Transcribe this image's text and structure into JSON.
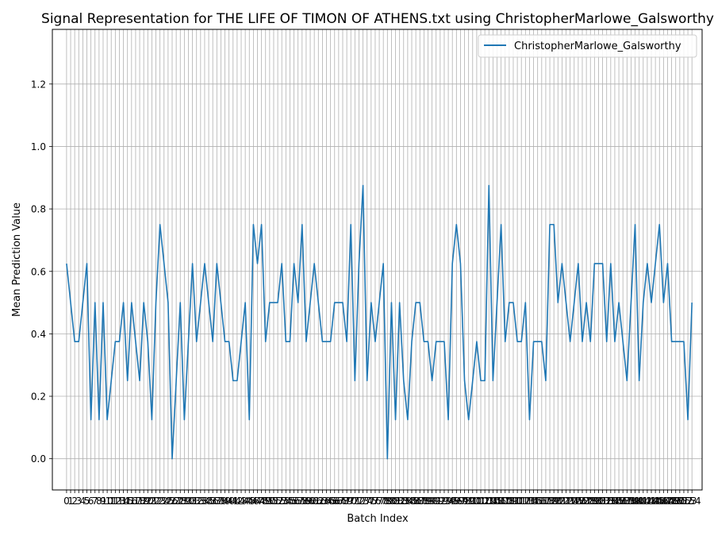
{
  "chart_data": {
    "type": "line",
    "title": "Signal Representation for THE LIFE OF TIMON OF ATHENS.txt using ChristopherMarlowe_Galsworthy",
    "xlabel": "Batch Index",
    "ylabel": "Mean Prediction Value",
    "xlim": [
      -3.5,
      156.5
    ],
    "ylim": [
      -0.1,
      1.375
    ],
    "yticks": [
      0.0,
      0.2,
      0.4,
      0.6,
      0.8,
      1.0,
      1.2
    ],
    "grid": true,
    "legend": "top-right",
    "series": [
      {
        "name": "ChristopherMarlowe_Galsworthy",
        "color": "#1f77b4",
        "values": [
          0.625,
          0.5,
          0.375,
          0.375,
          0.5,
          0.625,
          0.125,
          0.5,
          0.125,
          0.5,
          0.125,
          0.25,
          0.375,
          0.375,
          0.5,
          0.25,
          0.5,
          0.375,
          0.25,
          0.5,
          0.375,
          0.125,
          0.5,
          0.75,
          0.625,
          0.5,
          0.0,
          0.25,
          0.5,
          0.125,
          0.375,
          0.625,
          0.375,
          0.5,
          0.625,
          0.5,
          0.375,
          0.625,
          0.5,
          0.375,
          0.375,
          0.25,
          0.25,
          0.375,
          0.5,
          0.125,
          0.75,
          0.625,
          0.75,
          0.375,
          0.5,
          0.5,
          0.5,
          0.625,
          0.375,
          0.375,
          0.625,
          0.5,
          0.75,
          0.375,
          0.5,
          0.625,
          0.5,
          0.375,
          0.375,
          0.375,
          0.5,
          0.5,
          0.5,
          0.375,
          0.75,
          0.25,
          0.625,
          0.875,
          0.25,
          0.5,
          0.375,
          0.5,
          0.625,
          0.0,
          0.5,
          0.125,
          0.5,
          0.25,
          0.125,
          0.375,
          0.5,
          0.5,
          0.375,
          0.375,
          0.25,
          0.375,
          0.375,
          0.375,
          0.125,
          0.625,
          0.75,
          0.625,
          0.25,
          0.125,
          0.25,
          0.375,
          0.25,
          0.25,
          0.875,
          0.25,
          0.5,
          0.75,
          0.375,
          0.5,
          0.5,
          0.375,
          0.375,
          0.5,
          0.125,
          0.375,
          0.375,
          0.375,
          0.25,
          0.75,
          0.75,
          0.5,
          0.625,
          0.5,
          0.375,
          0.5,
          0.625,
          0.375,
          0.5,
          0.375,
          0.625,
          0.625,
          0.625,
          0.375,
          0.625,
          0.375,
          0.5,
          0.375,
          0.25,
          0.5,
          0.75,
          0.25,
          0.5,
          0.625,
          0.5,
          0.625,
          0.75,
          0.5,
          0.625,
          0.375,
          0.375,
          0.375,
          0.375,
          0.125,
          0.5
        ]
      }
    ]
  }
}
